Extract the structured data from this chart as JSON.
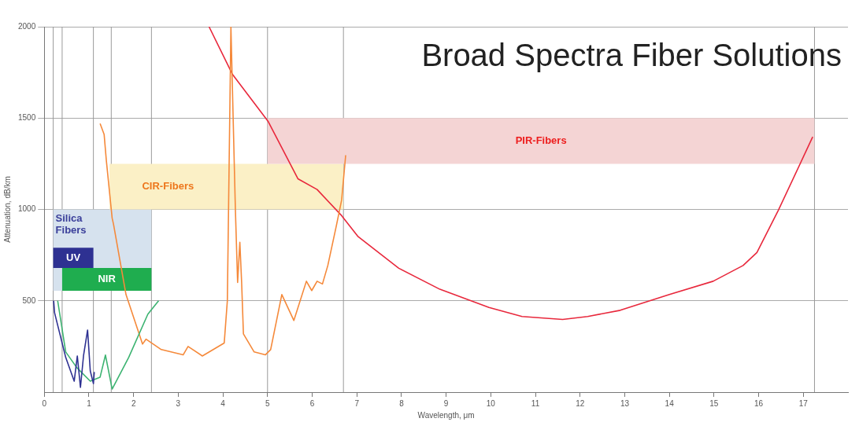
{
  "chart_data": {
    "type": "line",
    "title": "Broad Spectra Fiber Solutions",
    "xlabel": "Wavelength, μm",
    "ylabel": "Attenuation, dB/km",
    "xlim": [
      0,
      18
    ],
    "xticks": [
      0,
      1,
      2,
      3,
      4,
      5,
      6,
      7,
      8,
      9,
      10,
      11,
      12,
      13,
      14,
      15,
      16,
      17
    ],
    "ylim": [
      0,
      2000
    ],
    "yticks": [
      500,
      1000,
      1500,
      2000
    ],
    "grid": "y",
    "legend": false,
    "marker": "none",
    "line_style": "solid",
    "series": [
      {
        "color": "#2e3192",
        "x": [
          0.21,
          0.23,
          0.48,
          0.67,
          0.74,
          0.81,
          0.88,
          0.97,
          1.03,
          1.1,
          1.12
        ],
        "values": [
          500,
          435,
          190,
          60,
          198,
          26,
          202,
          340,
          116,
          47,
          110
        ]
      },
      {
        "color": "#3cb371",
        "x": [
          0.3,
          0.48,
          0.73,
          1.03,
          1.25,
          1.37,
          1.52,
          1.89,
          2.32,
          2.56
        ],
        "values": [
          500,
          220,
          134,
          60,
          82,
          203,
          17,
          190,
          427,
          500
        ]
      },
      {
        "color": "#f5893a",
        "x": [
          1.25,
          1.34,
          1.39,
          1.52,
          1.55,
          1.83,
          2.2,
          2.28,
          2.62,
          3.11,
          3.22,
          3.54,
          4.03,
          4.1,
          4.18,
          4.28,
          4.33,
          4.38,
          4.42,
          4.46,
          4.7,
          4.95,
          5.07,
          5.32,
          5.59,
          5.87,
          5.99,
          6.11,
          6.23,
          6.35,
          6.54,
          6.66,
          6.75
        ],
        "values": [
          1470,
          1411,
          1267,
          952,
          920,
          534,
          263,
          290,
          233,
          204,
          250,
          198,
          269,
          500,
          2000,
          1000,
          600,
          820,
          600,
          319,
          220,
          204,
          233,
          534,
          392,
          607,
          556,
          607,
          592,
          693,
          909,
          1052,
          1297
        ]
      },
      {
        "color": "#e8283c",
        "x": [
          3.69,
          4.21,
          5.01,
          5.68,
          6.11,
          6.66,
          7.03,
          7.94,
          8.86,
          9.96,
          10.7,
          11.61,
          12.17,
          12.9,
          14,
          14.98,
          15.65,
          15.96,
          16.44,
          17.21
        ],
        "values": [
          2000,
          1741,
          1483,
          1168,
          1109,
          966,
          851,
          678,
          563,
          463,
          414,
          398,
          414,
          448,
          534,
          607,
          693,
          764,
          995,
          1397
        ]
      }
    ],
    "ref_lines": [
      {
        "axis": "x",
        "value": 0.2,
        "color": "#9a9a9a"
      },
      {
        "axis": "x",
        "value": 0.4,
        "color": "#9a9a9a"
      },
      {
        "axis": "x",
        "value": 1.1,
        "color": "#9a9a9a"
      },
      {
        "axis": "x",
        "value": 1.5,
        "color": "#9a9a9a"
      },
      {
        "axis": "x",
        "value": 2.4,
        "color": "#9a9a9a"
      },
      {
        "axis": "x",
        "value": 5,
        "color": "#9a9a9a"
      },
      {
        "axis": "x",
        "value": 6.7,
        "color": "#9a9a9a"
      },
      {
        "axis": "x",
        "value": 17.25,
        "color": "#9a9a9a"
      }
    ],
    "bands": [
      {
        "axis": "x",
        "from": 0.2,
        "to": 2.4,
        "label": "Silica\nFibers",
        "color": "#d6e2ee"
      },
      {
        "axis": "x",
        "from": 1.46,
        "to": 6.7,
        "label": "CIR-Fibers",
        "color": "#fbf0c6"
      },
      {
        "axis": "x",
        "from": 5,
        "to": 17.25,
        "label": "PIR-Fibers",
        "color": "#f4d4d4"
      },
      {
        "axis": "x",
        "from": 0.2,
        "to": 1.1,
        "label": "UV",
        "color": "#2e3192"
      },
      {
        "axis": "x",
        "from": 0.4,
        "to": 2.4,
        "label": "NIR",
        "color": "#1fad4f"
      }
    ]
  }
}
